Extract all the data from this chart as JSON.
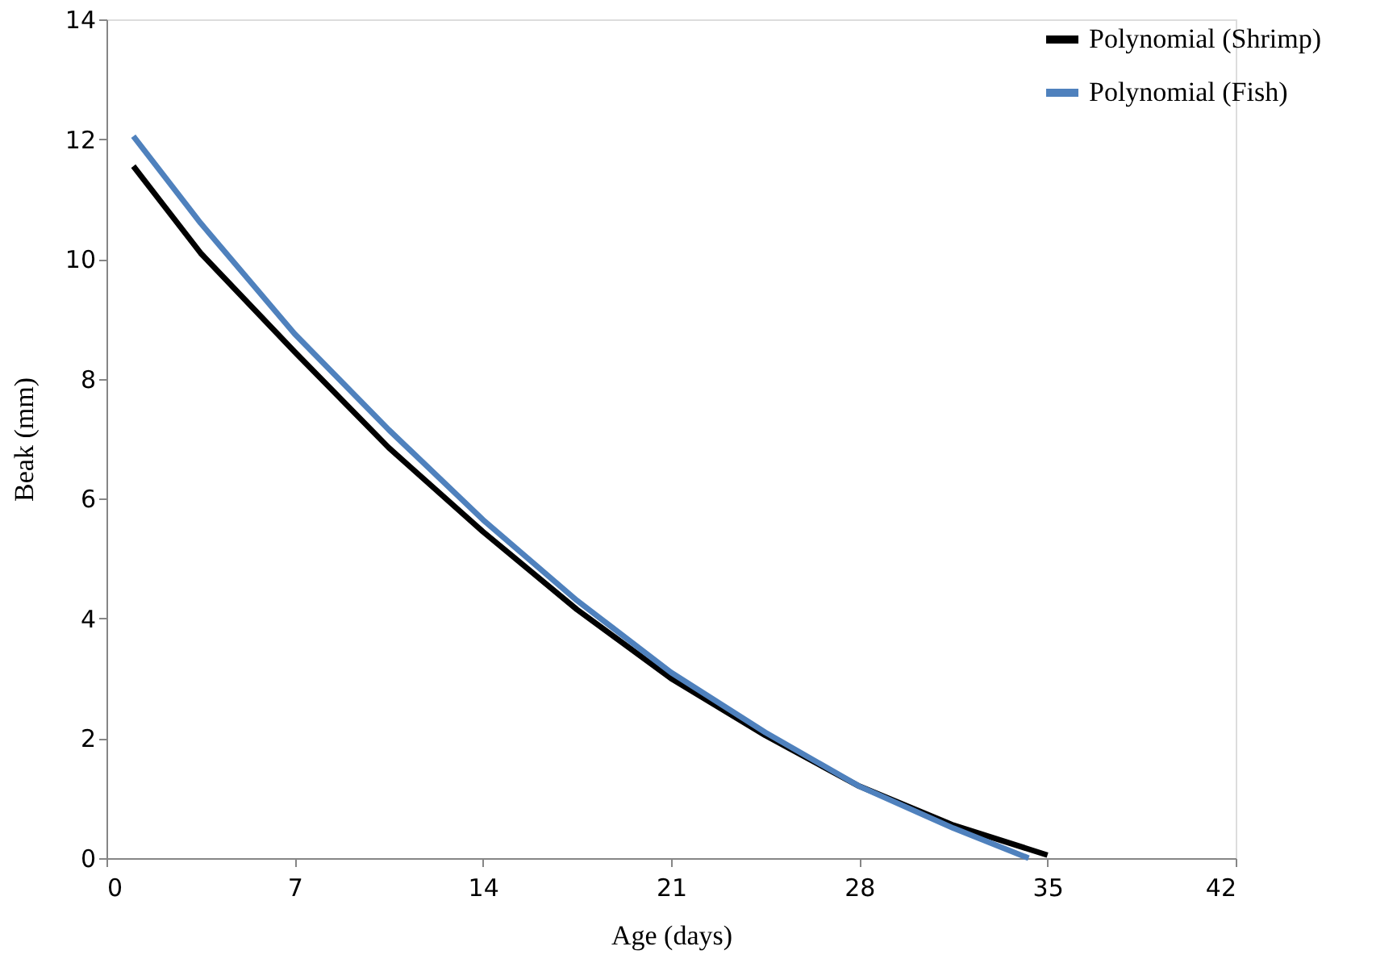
{
  "chart_data": {
    "type": "line",
    "xlabel": "Age (days)",
    "ylabel": "Beak (mm)",
    "xlim": [
      0,
      42
    ],
    "xticks": [
      0,
      7,
      14,
      21,
      28,
      35,
      42
    ],
    "ylim": [
      0,
      14
    ],
    "yticks": [
      0,
      2,
      4,
      6,
      8,
      10,
      12,
      14
    ],
    "grid": false,
    "legend": "right",
    "marker": "none",
    "line_style": "solid",
    "series": [
      {
        "name": "Polynomial (Shrimp)",
        "color": "#000000",
        "x": [
          1,
          3.5,
          7,
          10.5,
          14,
          17.5,
          21,
          24.5,
          28,
          31.5,
          35
        ],
        "values": [
          11.55,
          10.1,
          8.45,
          6.85,
          5.45,
          4.15,
          3.0,
          2.05,
          1.2,
          0.55,
          0.05
        ]
      },
      {
        "name": "Polynomial (Fish)",
        "color": "#4f81bd",
        "x": [
          1,
          3.5,
          7,
          10.5,
          14,
          17.5,
          21,
          24.5,
          28,
          31.5,
          34.3
        ],
        "values": [
          12.05,
          10.6,
          8.75,
          7.15,
          5.65,
          4.3,
          3.1,
          2.1,
          1.2,
          0.5,
          0.0
        ]
      }
    ]
  }
}
